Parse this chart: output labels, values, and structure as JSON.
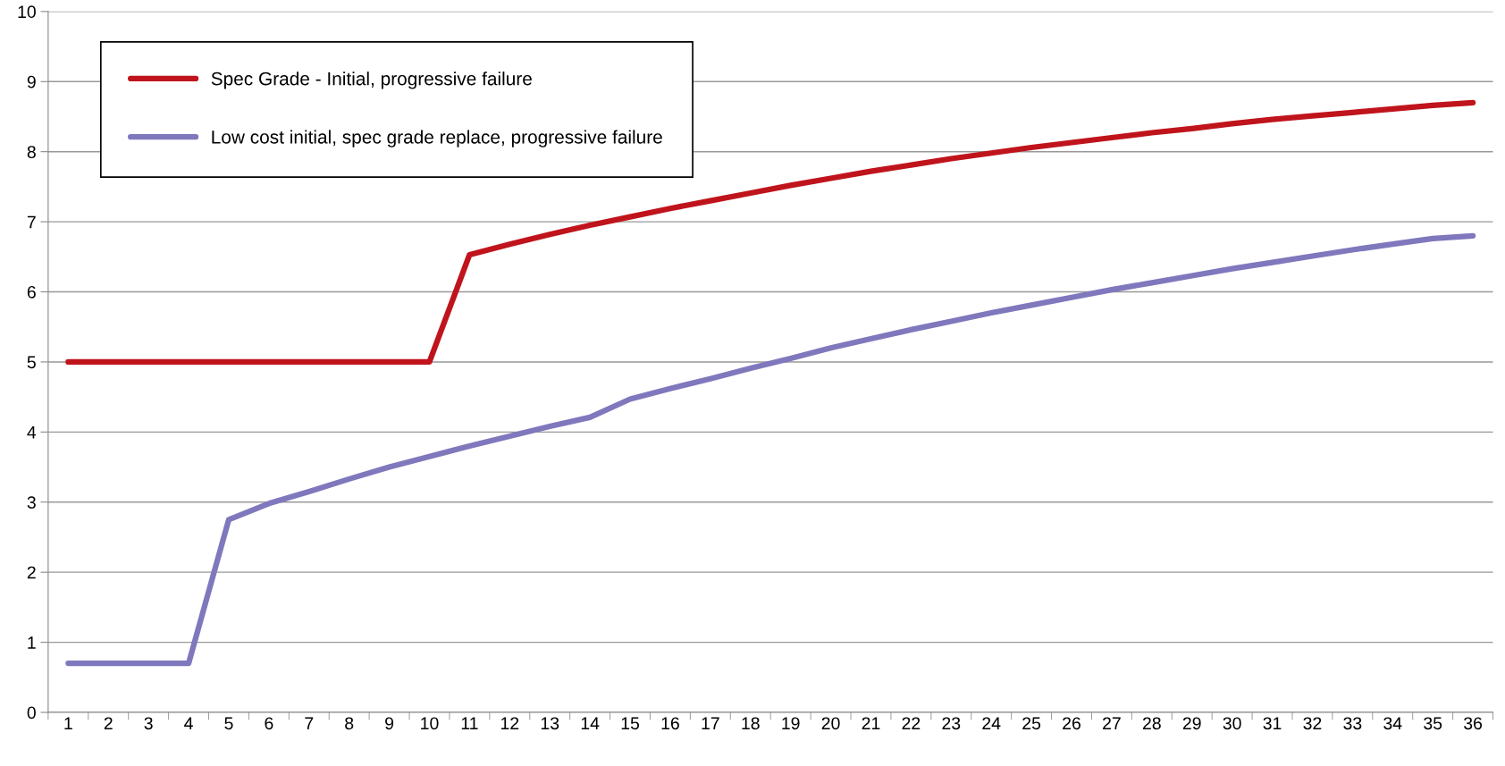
{
  "chart_data": {
    "type": "line",
    "categories": [
      "1",
      "2",
      "3",
      "4",
      "5",
      "6",
      "7",
      "8",
      "9",
      "10",
      "11",
      "12",
      "13",
      "14",
      "15",
      "16",
      "17",
      "18",
      "19",
      "20",
      "21",
      "22",
      "23",
      "24",
      "25",
      "26",
      "27",
      "28",
      "29",
      "30",
      "31",
      "32",
      "33",
      "34",
      "35",
      "36"
    ],
    "series": [
      {
        "name": "Spec Grade - Initial, progressive failure",
        "color": "#c0141c",
        "values": [
          5,
          5,
          5,
          5,
          5,
          5,
          5,
          5,
          5,
          5,
          6.53,
          6.68,
          6.82,
          6.95,
          7.07,
          7.19,
          7.3,
          7.41,
          7.52,
          7.62,
          7.72,
          7.81,
          7.9,
          7.98,
          8.06,
          8.13,
          8.2,
          8.27,
          8.33,
          8.4,
          8.46,
          8.51,
          8.56,
          8.61,
          8.66,
          8.7
        ]
      },
      {
        "name": "Low cost initial, spec grade replace, progressive failure",
        "color": "#7f78bd",
        "values": [
          0.7,
          0.7,
          0.7,
          0.7,
          2.75,
          2.98,
          3.15,
          3.33,
          3.5,
          3.65,
          3.8,
          3.94,
          4.08,
          4.21,
          4.47,
          4.62,
          4.76,
          4.91,
          5.05,
          5.2,
          5.33,
          5.46,
          5.58,
          5.7,
          5.81,
          5.92,
          6.03,
          6.13,
          6.23,
          6.33,
          6.42,
          6.51,
          6.6,
          6.68,
          6.76,
          6.8
        ]
      }
    ],
    "ylim": [
      0,
      10
    ],
    "yticks": [
      0,
      1,
      2,
      3,
      4,
      5,
      6,
      7,
      8,
      9,
      10
    ],
    "grid": "y",
    "legend": "top left",
    "marker": "none",
    "line_style": "solid"
  }
}
